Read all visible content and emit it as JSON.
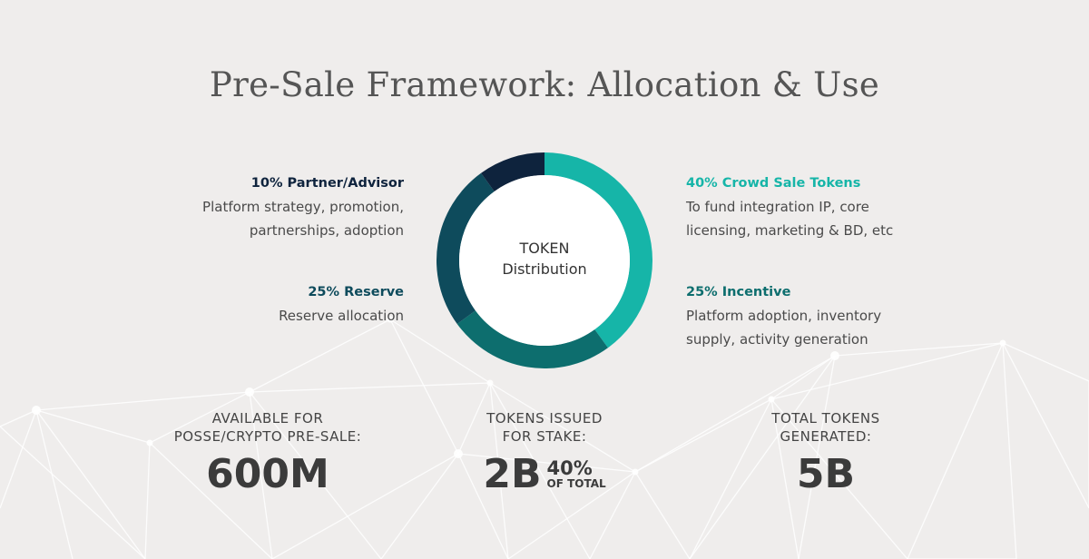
{
  "title": "Pre-Sale Framework: Allocation & Use",
  "colors": {
    "background": "#efedec",
    "crowd_sale": "#16b5a8",
    "incentive": "#0d6e6e",
    "reserve": "#0e4b5c",
    "partner": "#0e233d"
  },
  "legend": {
    "partner": {
      "heading": "10% Partner/Advisor",
      "line1": "Platform strategy, promotion,",
      "line2": "partnerships, adoption"
    },
    "reserve": {
      "heading": "25% Reserve",
      "line1": "Reserve allocation"
    },
    "crowd": {
      "heading": "40% Crowd Sale Tokens",
      "line1": "To fund integration IP, core",
      "line2": "licensing, marketing & BD, etc"
    },
    "incentive": {
      "heading": "25% Incentive",
      "line1": "Platform adoption, inventory",
      "line2": "supply, activity generation"
    }
  },
  "chart_data": {
    "type": "pie",
    "title": "TOKEN Distribution",
    "center_line1": "TOKEN",
    "center_line2": "Distribution",
    "slices": [
      {
        "label": "Crowd Sale Tokens",
        "value": 40,
        "color": "#16b5a8"
      },
      {
        "label": "Incentive",
        "value": 25,
        "color": "#0d6e6e"
      },
      {
        "label": "Reserve",
        "value": 25,
        "color": "#0e4b5c"
      },
      {
        "label": "Partner/Advisor",
        "value": 10,
        "color": "#0e233d"
      }
    ]
  },
  "stats": {
    "presale": {
      "line1": "AVAILABLE FOR",
      "line2": "POSSE/CRYPTO PRE-SALE:",
      "value": "600M"
    },
    "stake": {
      "line1": "TOKENS ISSUED",
      "line2": "FOR STAKE:",
      "value": "2B",
      "pct": "40%",
      "sub": "OF TOTAL"
    },
    "total": {
      "line1": "TOTAL TOKENS",
      "line2": "GENERATED:",
      "value": "5B"
    }
  }
}
